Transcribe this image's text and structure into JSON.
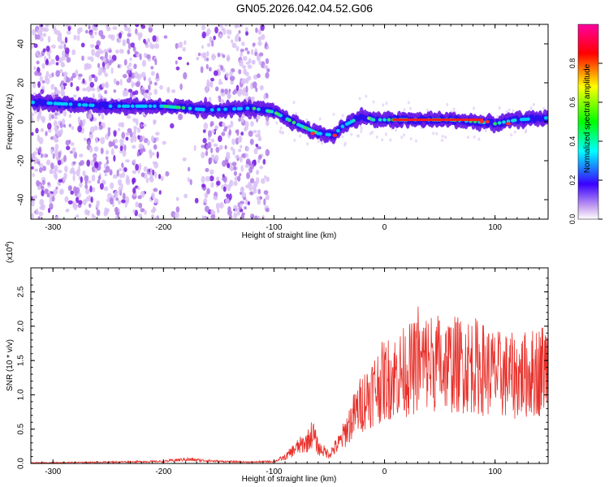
{
  "title": "GN05.2026.042.04.52.G06",
  "chart_data": [
    {
      "type": "heatmap",
      "xlabel": "Height of straight line (km)",
      "ylabel": "Frequency (Hz)",
      "xlim": [
        -320,
        148
      ],
      "ylim": [
        -50,
        50
      ],
      "xticks": [
        -300,
        -200,
        -100,
        0,
        100
      ],
      "yticks": [
        -40,
        -20,
        0,
        20,
        40
      ],
      "colorbar": {
        "label": "Normalized spectral amplitude",
        "range": [
          0,
          1
        ],
        "ticks": [
          "0.0",
          "0.2",
          "0.4",
          "0.6",
          "0.8"
        ]
      },
      "ridge_x": [
        -320,
        -250,
        -200,
        -160,
        -120,
        -100,
        -80,
        -60,
        -45,
        -40,
        -30,
        -20,
        -10,
        0,
        20,
        60,
        85,
        100,
        120,
        148
      ],
      "ridge_y": [
        10,
        8,
        8,
        6,
        7,
        5,
        -1,
        -6,
        -7,
        -3,
        0,
        3,
        1,
        1,
        1,
        1,
        0,
        -1,
        1,
        2
      ]
    },
    {
      "type": "line",
      "xlabel": "Height of straight line (km)",
      "ylabel": "SNR (10 * v/v)",
      "y_multiplier": "(x10",
      "y_multiplier_exp": "4",
      "xlim": [
        -320,
        148
      ],
      "ylim": [
        0,
        2.85
      ],
      "xticks": [
        -300,
        -200,
        -100,
        0,
        100
      ],
      "yticks": [
        "0.0",
        "0.5",
        "1.0",
        "1.5",
        "2.0",
        "2.5"
      ],
      "series": [
        {
          "color": "#e8302a",
          "envelope_x": [
            -320,
            -250,
            -200,
            -180,
            -150,
            -120,
            -100,
            -90,
            -80,
            -70,
            -65,
            -60,
            -50,
            -40,
            -30,
            -20,
            -10,
            0,
            20,
            40,
            60,
            80,
            100,
            120,
            140,
            148
          ],
          "envelope_y": [
            0.01,
            0.02,
            0.03,
            0.06,
            0.03,
            0.02,
            0.03,
            0.1,
            0.25,
            0.35,
            0.5,
            0.25,
            0.15,
            0.35,
            0.7,
            1.0,
            1.2,
            1.35,
            1.5,
            1.65,
            1.6,
            1.6,
            1.45,
            1.4,
            1.5,
            1.6
          ]
        }
      ]
    }
  ]
}
